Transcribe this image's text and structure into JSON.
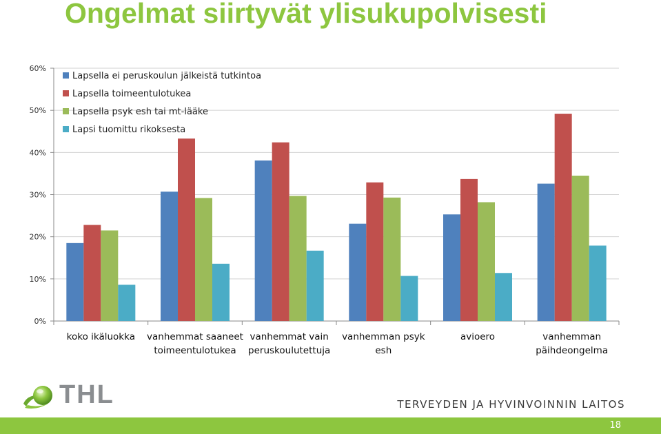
{
  "slide": {
    "title": "Ongelmat siirtyvät ylisukupolvisesti",
    "organization": "TERVEYDEN JA HYVINVOINNIN LAITOS",
    "logo_text": "THL",
    "page_number": "18"
  },
  "colors": {
    "accent": "#8dc63f"
  },
  "chart_data": {
    "type": "bar",
    "categories": [
      [
        "koko ikäluokka"
      ],
      [
        "vanhemmat saaneet",
        "toimeentulotukea"
      ],
      [
        "vanhemmat vain",
        "peruskoulutettuja"
      ],
      [
        "vanhemman psyk",
        "esh"
      ],
      [
        "avioero"
      ],
      [
        "vanhemman",
        "päihdeongelma"
      ]
    ],
    "series": [
      {
        "name": "Lapsella ei peruskoulun jälkeistä tutkintoa",
        "color": "#4f81bd",
        "values": [
          18.5,
          30.7,
          38.1,
          23.1,
          25.3,
          32.6
        ]
      },
      {
        "name": "Lapsella toimeentulotukea",
        "color": "#c0504d",
        "values": [
          22.8,
          43.3,
          42.4,
          32.9,
          33.7,
          49.2
        ]
      },
      {
        "name": "Lapsella psyk esh tai mt-lääke",
        "color": "#9bbb59",
        "values": [
          21.5,
          29.2,
          29.7,
          29.3,
          28.2,
          34.5
        ]
      },
      {
        "name": "Lapsi tuomittu rikoksesta",
        "color": "#4bacc6",
        "values": [
          8.6,
          13.6,
          16.7,
          10.7,
          11.4,
          17.9
        ]
      }
    ],
    "yticks": [
      "0%",
      "10%",
      "20%",
      "30%",
      "40%",
      "50%",
      "60%"
    ],
    "ylim": [
      0,
      60
    ],
    "grid": true,
    "legend_position": "top-left"
  }
}
